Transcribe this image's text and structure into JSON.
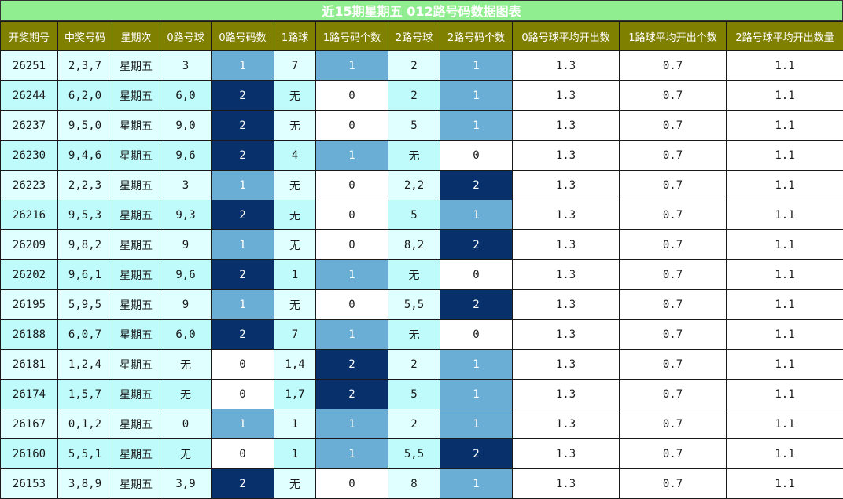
{
  "title": "近15期星期五 012路号码数据图表",
  "headers": [
    "开奖期号",
    "中奖号码",
    "星期次",
    "0路号球",
    "0路号码数",
    "1路球",
    "1路号码个数",
    "2路号球",
    "2路号码个数",
    "0路号球平均开出数",
    "1路球平均开出个数",
    "2路号球平均开出数量"
  ],
  "rows": [
    [
      "26251",
      "2,3,7",
      "星期五",
      "3",
      "1",
      "7",
      "1",
      "2",
      "1",
      "1.3",
      "0.7",
      "1.1"
    ],
    [
      "26244",
      "6,2,0",
      "星期五",
      "6,0",
      "2",
      "无",
      "0",
      "2",
      "1",
      "1.3",
      "0.7",
      "1.1"
    ],
    [
      "26237",
      "9,5,0",
      "星期五",
      "9,0",
      "2",
      "无",
      "0",
      "5",
      "1",
      "1.3",
      "0.7",
      "1.1"
    ],
    [
      "26230",
      "9,4,6",
      "星期五",
      "9,6",
      "2",
      "4",
      "1",
      "无",
      "0",
      "1.3",
      "0.7",
      "1.1"
    ],
    [
      "26223",
      "2,2,3",
      "星期五",
      "3",
      "1",
      "无",
      "0",
      "2,2",
      "2",
      "1.3",
      "0.7",
      "1.1"
    ],
    [
      "26216",
      "9,5,3",
      "星期五",
      "9,3",
      "2",
      "无",
      "0",
      "5",
      "1",
      "1.3",
      "0.7",
      "1.1"
    ],
    [
      "26209",
      "9,8,2",
      "星期五",
      "9",
      "1",
      "无",
      "0",
      "8,2",
      "2",
      "1.3",
      "0.7",
      "1.1"
    ],
    [
      "26202",
      "9,6,1",
      "星期五",
      "9,6",
      "2",
      "1",
      "1",
      "无",
      "0",
      "1.3",
      "0.7",
      "1.1"
    ],
    [
      "26195",
      "5,9,5",
      "星期五",
      "9",
      "1",
      "无",
      "0",
      "5,5",
      "2",
      "1.3",
      "0.7",
      "1.1"
    ],
    [
      "26188",
      "6,0,7",
      "星期五",
      "6,0",
      "2",
      "7",
      "1",
      "无",
      "0",
      "1.3",
      "0.7",
      "1.1"
    ],
    [
      "26181",
      "1,2,4",
      "星期五",
      "无",
      "0",
      "1,4",
      "2",
      "2",
      "1",
      "1.3",
      "0.7",
      "1.1"
    ],
    [
      "26174",
      "1,5,7",
      "星期五",
      "无",
      "0",
      "1,7",
      "2",
      "5",
      "1",
      "1.3",
      "0.7",
      "1.1"
    ],
    [
      "26167",
      "0,1,2",
      "星期五",
      "0",
      "1",
      "1",
      "1",
      "2",
      "1",
      "1.3",
      "0.7",
      "1.1"
    ],
    [
      "26160",
      "5,5,1",
      "星期五",
      "无",
      "0",
      "1",
      "1",
      "5,5",
      "2",
      "1.3",
      "0.7",
      "1.1"
    ],
    [
      "26153",
      "3,8,9",
      "星期五",
      "3,9",
      "2",
      "无",
      "0",
      "8",
      "1",
      "1.3",
      "0.7",
      "1.1"
    ]
  ],
  "colors": {
    "title_bg": "#90ee90",
    "header_bg": "#808000",
    "count_1": "#6aaed6",
    "count_2": "#08306b",
    "row_odd": "#e0ffff",
    "row_even": "#bffbfb"
  }
}
